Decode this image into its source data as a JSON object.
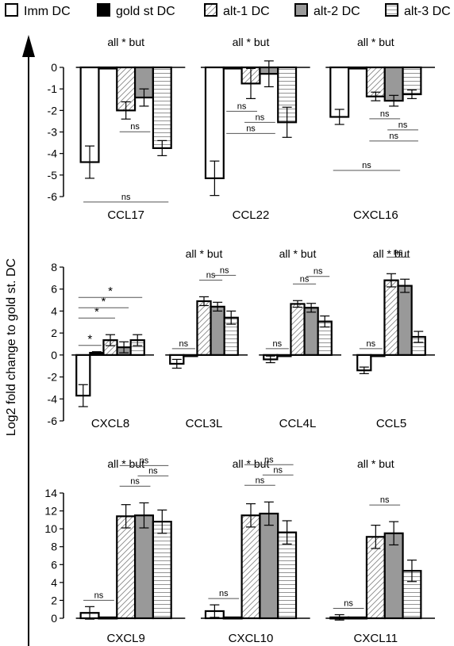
{
  "legend": [
    {
      "name": "Imm DC",
      "fill": "white"
    },
    {
      "name": "gold st DC",
      "fill": "black"
    },
    {
      "name": "alt-1 DC",
      "fill": "diagonal"
    },
    {
      "name": "alt-2 DC",
      "fill": "gray"
    },
    {
      "name": "alt-3 DC",
      "fill": "horizontal"
    }
  ],
  "colors": {
    "gold": "#000000",
    "alt2": "#999999",
    "stroke": "#000000",
    "sig_line": "#555555"
  },
  "ylabel": "Log2 fold change to gold st. DC",
  "chart_data": [
    {
      "type": "bar",
      "ylim": [
        -6,
        0
      ],
      "ytick_labels": [
        "0",
        "-1",
        "-2",
        "-3",
        "-4",
        "-5",
        "-6"
      ],
      "series": [
        "Imm DC",
        "gold st DC",
        "alt-1 DC",
        "alt-2 DC",
        "alt-3 DC"
      ],
      "groups": [
        {
          "name": "CCL17",
          "annotation": "all * but",
          "values": [
            -4.4,
            0.0,
            -2.0,
            -1.4,
            -3.75
          ],
          "errors": [
            0.75,
            0.0,
            0.4,
            0.4,
            0.35
          ],
          "sig": [
            {
              "a": 2,
              "b": 3,
              "label": "ns"
            },
            {
              "a": 0,
              "b": 4,
              "label": "ns"
            }
          ]
        },
        {
          "name": "CCL22",
          "annotation": "all * but",
          "values": [
            -5.15,
            0.0,
            -0.75,
            -0.3,
            -2.55
          ],
          "errors": [
            0.8,
            0.0,
            0.7,
            0.6,
            0.7
          ],
          "sig": [
            {
              "a": 1,
              "b": 2,
              "label": "ns"
            },
            {
              "a": 2,
              "b": 3,
              "label": "ns"
            },
            {
              "a": 1,
              "b": 3,
              "label": "ns"
            }
          ]
        },
        {
          "name": "CXCL16",
          "annotation": "all * but",
          "values": [
            -2.3,
            0.0,
            -1.35,
            -1.55,
            -1.25
          ],
          "errors": [
            0.35,
            0.0,
            0.2,
            0.25,
            0.2
          ],
          "sig": [
            {
              "a": 2,
              "b": 3,
              "label": "ns"
            },
            {
              "a": 3,
              "b": 4,
              "label": "ns"
            },
            {
              "a": 2,
              "b": 4,
              "label": "ns"
            },
            {
              "a": 0,
              "b": 3,
              "label": "ns"
            }
          ]
        }
      ]
    },
    {
      "type": "bar",
      "ylim": [
        -6,
        8
      ],
      "ytick_labels": [
        "8",
        "6",
        "4",
        "2",
        "0",
        "-2",
        "-4",
        "-6"
      ],
      "series": [
        "Imm DC",
        "gold st DC",
        "alt-1 DC",
        "alt-2 DC",
        "alt-3 DC"
      ],
      "groups": [
        {
          "name": "CXCL8",
          "annotation": "",
          "values": [
            -3.7,
            0.2,
            1.35,
            0.7,
            1.35
          ],
          "errors": [
            1.0,
            0.1,
            0.5,
            0.5,
            0.5
          ],
          "sig": [
            {
              "a": 0,
              "b": 1,
              "label": "*"
            },
            {
              "a": 0,
              "b": 2,
              "label": "*"
            },
            {
              "a": 0,
              "b": 3,
              "label": "*"
            },
            {
              "a": 0,
              "b": 4,
              "label": "*"
            }
          ]
        },
        {
          "name": "CCL3L",
          "annotation": "all * but",
          "values": [
            -0.8,
            0.0,
            4.9,
            4.4,
            3.4
          ],
          "errors": [
            0.4,
            0.0,
            0.4,
            0.4,
            0.6
          ],
          "sig": [
            {
              "a": 0,
              "b": 1,
              "label": "ns"
            },
            {
              "a": 2,
              "b": 3,
              "label": "ns"
            },
            {
              "a": 3,
              "b": 4,
              "label": "ns"
            }
          ]
        },
        {
          "name": "CCL4L",
          "annotation": "all * but",
          "values": [
            -0.4,
            0.0,
            4.65,
            4.3,
            3.05
          ],
          "errors": [
            0.3,
            0.0,
            0.3,
            0.4,
            0.5
          ],
          "sig": [
            {
              "a": 0,
              "b": 1,
              "label": "ns"
            },
            {
              "a": 2,
              "b": 3,
              "label": "ns"
            },
            {
              "a": 3,
              "b": 4,
              "label": "ns"
            }
          ]
        },
        {
          "name": "CCL5",
          "annotation": "all * but",
          "values": [
            -1.4,
            0.0,
            6.8,
            6.3,
            1.65
          ],
          "errors": [
            0.3,
            0.0,
            0.6,
            0.6,
            0.5
          ],
          "sig": [
            {
              "a": 0,
              "b": 1,
              "label": "ns"
            },
            {
              "a": 2,
              "b": 3,
              "label": "ns"
            }
          ]
        }
      ]
    },
    {
      "type": "bar",
      "ylim": [
        0,
        14
      ],
      "ytick_labels": [
        "14",
        "12",
        "10",
        "8",
        "6",
        "4",
        "2",
        "0"
      ],
      "series": [
        "Imm DC",
        "gold st DC",
        "alt-1 DC",
        "alt-2 DC",
        "alt-3 DC"
      ],
      "groups": [
        {
          "name": "CXCL9",
          "annotation": "all * but",
          "values": [
            0.6,
            0.1,
            11.4,
            11.5,
            10.8
          ],
          "errors": [
            0.7,
            0.0,
            1.3,
            1.4,
            1.3
          ],
          "sig": [
            {
              "a": 0,
              "b": 1,
              "label": "ns"
            },
            {
              "a": 2,
              "b": 3,
              "label": "ns"
            },
            {
              "a": 3,
              "b": 4,
              "label": "ns"
            },
            {
              "a": 2,
              "b": 4,
              "label": "ns"
            }
          ]
        },
        {
          "name": "CXCL10",
          "annotation": "all * but",
          "values": [
            0.8,
            0.1,
            11.5,
            11.7,
            9.6
          ],
          "errors": [
            0.7,
            0.0,
            1.3,
            1.3,
            1.3
          ],
          "sig": [
            {
              "a": 0,
              "b": 1,
              "label": "ns"
            },
            {
              "a": 2,
              "b": 3,
              "label": "ns"
            },
            {
              "a": 3,
              "b": 4,
              "label": "ns"
            },
            {
              "a": 2,
              "b": 4,
              "label": "ns"
            }
          ]
        },
        {
          "name": "CXCL11",
          "annotation": "all * but",
          "values": [
            0.1,
            0.1,
            9.1,
            9.5,
            5.3
          ],
          "errors": [
            0.3,
            0.0,
            1.3,
            1.3,
            1.2
          ],
          "sig": [
            {
              "a": 0,
              "b": 1,
              "label": "ns"
            },
            {
              "a": 2,
              "b": 3,
              "label": "ns"
            }
          ]
        }
      ]
    }
  ]
}
